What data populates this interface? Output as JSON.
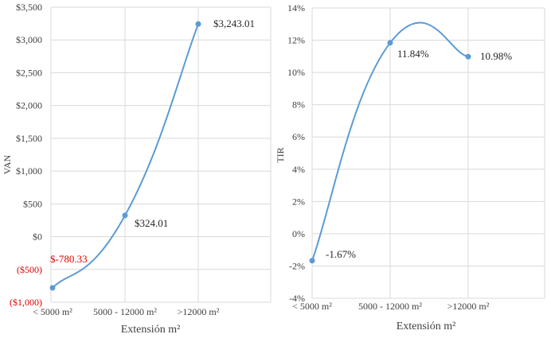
{
  "chart_data": [
    {
      "type": "line",
      "smooth": true,
      "categories": [
        "< 5000 m²",
        "5000 - 12000 m²",
        ">12000 m²"
      ],
      "series": [
        {
          "color": "#5b9bd5",
          "values": [
            -780.33,
            324.01,
            3243.01
          ]
        }
      ],
      "data_labels": [
        "$-780.33",
        "$324.01",
        "$3,243.01"
      ],
      "ylabel": "VAN",
      "xlabel": "Extensión m²",
      "ylim": [
        -1000,
        3500
      ],
      "yticks": [
        -1000,
        -500,
        0,
        500,
        1000,
        1500,
        2000,
        2500,
        3000,
        3500
      ],
      "ytick_labels": [
        "($1,000)",
        "($500)",
        "$0",
        "$500",
        "$1,000",
        "$1,500",
        "$2,000",
        "$2,500",
        "$3,000",
        "$3,500"
      ],
      "grid": true,
      "negative_label_color": "#e00000"
    },
    {
      "type": "line",
      "smooth": true,
      "categories": [
        "< 5000 m²",
        "5000 - 12000 m²",
        ">12000 m²"
      ],
      "series": [
        {
          "color": "#5b9bd5",
          "values": [
            -1.67,
            11.84,
            10.98
          ]
        }
      ],
      "data_labels": [
        "-1.67%",
        "11.84%",
        "10.98%"
      ],
      "ylabel": "TIR",
      "xlabel": "Extensión m²",
      "ylim": [
        -4,
        14
      ],
      "yticks": [
        -4,
        -2,
        0,
        2,
        4,
        6,
        8,
        10,
        12,
        14
      ],
      "ytick_labels": [
        "-4%",
        "-2%",
        "0%",
        "2%",
        "4%",
        "6%",
        "8%",
        "10%",
        "12%",
        "14%"
      ],
      "grid": true,
      "negative_label_color": "#404040"
    }
  ]
}
